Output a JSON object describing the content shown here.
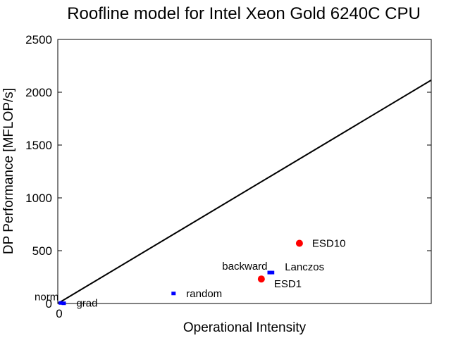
{
  "chart_data": {
    "type": "scatter",
    "title": "Roofline model for Intel Xeon Gold 6240C CPU",
    "xlabel": "Operational Intensity",
    "ylabel": "DP Performance [MFLOP/s]",
    "xlim": [
      0,
      100
    ],
    "ylim": [
      0,
      2500
    ],
    "xticks": [
      {
        "value": 0,
        "label": "0"
      }
    ],
    "yticks": [
      {
        "value": 0,
        "label": "0"
      },
      {
        "value": 500,
        "label": "500"
      },
      {
        "value": 1000,
        "label": "1000"
      },
      {
        "value": 1500,
        "label": "1500"
      },
      {
        "value": 2000,
        "label": "2000"
      },
      {
        "value": 2500,
        "label": "2500"
      }
    ],
    "grid": false,
    "roofline": {
      "x": [
        0,
        100
      ],
      "y": [
        0,
        2115
      ],
      "color": "#000000"
    },
    "points": [
      {
        "label": "norm",
        "x": 0.8,
        "y": 5,
        "color": "#0000ff",
        "size": "small",
        "label_side": "left-above"
      },
      {
        "label": "grad",
        "x": 1.6,
        "y": 2,
        "color": "#0000ff",
        "size": "small",
        "label_side": "right"
      },
      {
        "label": "random",
        "x": 31,
        "y": 95,
        "color": "#0000ff",
        "size": "small",
        "label_side": "right"
      },
      {
        "label": "backward",
        "x": 56.7,
        "y": 293,
        "color": "#0000ff",
        "size": "small",
        "label_side": "left-above"
      },
      {
        "label": "Lanczos",
        "x": 57.4,
        "y": 293,
        "color": "#0000ff",
        "size": "small",
        "label_side": "right-above"
      },
      {
        "label": "ESD1",
        "x": 54.5,
        "y": 232,
        "color": "#ff0000",
        "size": "large",
        "label_side": "right-below"
      },
      {
        "label": "ESD10",
        "x": 64.7,
        "y": 570,
        "color": "#ff0000",
        "size": "large",
        "label_side": "right"
      }
    ]
  }
}
